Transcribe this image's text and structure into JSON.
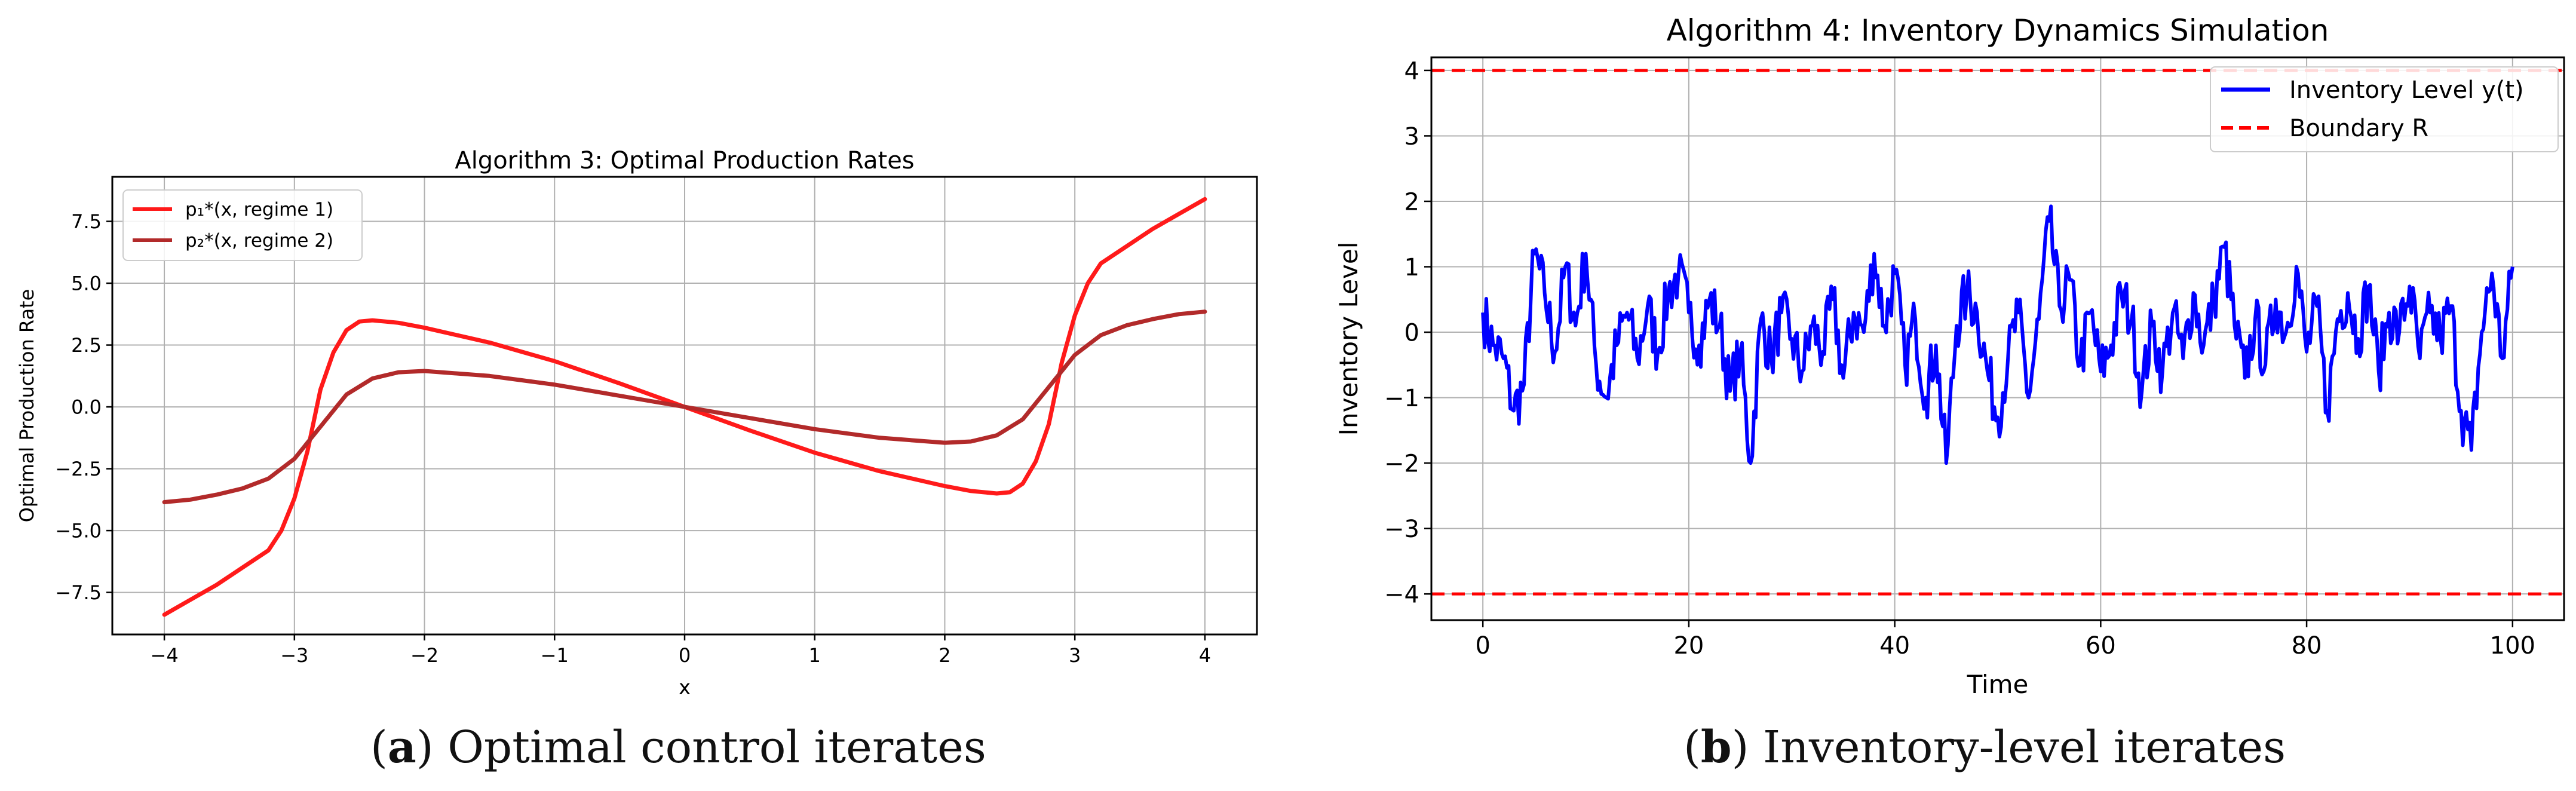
{
  "colors": {
    "p1": "#ff1a1a",
    "p2": "#b22a2a",
    "inventory": "#0000ff",
    "boundary": "#ff0000",
    "grid": "#b0b0b0",
    "axis": "#000000"
  },
  "captions": {
    "a": {
      "letter": "a",
      "text": " Optimal control iterates"
    },
    "b": {
      "letter": "b",
      "text": " Inventory-level iterates"
    }
  },
  "chart_data": [
    {
      "type": "line",
      "title": "Algorithm 3: Optimal Production Rates",
      "xlabel": "x",
      "ylabel": "Optimal Production Rate",
      "xlim": [
        -4.4,
        4.4
      ],
      "ylim": [
        -9.2,
        9.3
      ],
      "xticks": [
        -4,
        -3,
        -2,
        -1,
        0,
        1,
        2,
        3,
        4
      ],
      "yticks": [
        -7.5,
        -5.0,
        -2.5,
        0.0,
        2.5,
        5.0,
        7.5
      ],
      "xtick_labels": [
        "−4",
        "−3",
        "−2",
        "−1",
        "0",
        "1",
        "2",
        "3",
        "4"
      ],
      "ytick_labels": [
        "−7.5",
        "−5.0",
        "−2.5",
        "0.0",
        "2.5",
        "5.0",
        "7.5"
      ],
      "grid": true,
      "legend_position": "top-left",
      "series": [
        {
          "name": "p₁*(x, regime 1)",
          "color": "#ff1a1a",
          "x": [
            -4.0,
            -3.8,
            -3.6,
            -3.4,
            -3.2,
            -3.1,
            -3.0,
            -2.9,
            -2.8,
            -2.7,
            -2.6,
            -2.5,
            -2.4,
            -2.3,
            -2.2,
            -2.0,
            -1.5,
            -1.0,
            -0.5,
            0.0,
            0.5,
            1.0,
            1.5,
            2.0,
            2.2,
            2.3,
            2.4,
            2.5,
            2.6,
            2.7,
            2.8,
            2.9,
            3.0,
            3.1,
            3.2,
            3.4,
            3.6,
            3.8,
            4.0
          ],
          "y": [
            -8.4,
            -7.8,
            -7.2,
            -6.5,
            -5.8,
            -5.0,
            -3.7,
            -1.8,
            0.7,
            2.2,
            3.1,
            3.45,
            3.5,
            3.45,
            3.4,
            3.2,
            2.6,
            1.85,
            0.95,
            0.0,
            -0.95,
            -1.85,
            -2.6,
            -3.2,
            -3.4,
            -3.45,
            -3.5,
            -3.45,
            -3.1,
            -2.2,
            -0.7,
            1.8,
            3.7,
            5.0,
            5.8,
            6.5,
            7.2,
            7.8,
            8.4
          ]
        },
        {
          "name": "p₂*(x, regime 2)",
          "color": "#b22a2a",
          "x": [
            -4.0,
            -3.8,
            -3.6,
            -3.4,
            -3.2,
            -3.0,
            -2.8,
            -2.6,
            -2.4,
            -2.2,
            -2.0,
            -1.5,
            -1.0,
            -0.5,
            0.0,
            0.5,
            1.0,
            1.5,
            2.0,
            2.2,
            2.4,
            2.6,
            2.8,
            3.0,
            3.2,
            3.4,
            3.6,
            3.8,
            4.0
          ],
          "y": [
            -3.85,
            -3.75,
            -3.55,
            -3.3,
            -2.9,
            -2.1,
            -0.8,
            0.5,
            1.15,
            1.4,
            1.45,
            1.25,
            0.9,
            0.45,
            0.0,
            -0.45,
            -0.9,
            -1.25,
            -1.45,
            -1.4,
            -1.15,
            -0.5,
            0.8,
            2.1,
            2.9,
            3.3,
            3.55,
            3.75,
            3.85
          ]
        }
      ]
    },
    {
      "type": "line",
      "title": "Algorithm 4: Inventory Dynamics Simulation",
      "xlabel": "Time",
      "ylabel": "Inventory Level",
      "xlim": [
        -5,
        105
      ],
      "ylim": [
        -4.4,
        4.2
      ],
      "xticks": [
        0,
        20,
        40,
        60,
        80,
        100
      ],
      "yticks": [
        -4,
        -3,
        -2,
        -1,
        0,
        1,
        2,
        3,
        4
      ],
      "xtick_labels": [
        "0",
        "20",
        "40",
        "60",
        "80",
        "100"
      ],
      "ytick_labels": [
        "−4",
        "−3",
        "−2",
        "−1",
        "0",
        "1",
        "2",
        "3",
        "4"
      ],
      "grid": true,
      "legend_position": "top-right",
      "series": [
        {
          "name": "Inventory Level y(t)",
          "color": "#0000ff",
          "style": "solid",
          "x": [
            0,
            1,
            2,
            3,
            4,
            5,
            6,
            7,
            8,
            9,
            10,
            11,
            12,
            13,
            14,
            15,
            16,
            17,
            18,
            19,
            20,
            21,
            22,
            23,
            24,
            25,
            26,
            27,
            28,
            29,
            30,
            31,
            32,
            33,
            34,
            35,
            36,
            37,
            38,
            39,
            40,
            41,
            42,
            43,
            44,
            45,
            46,
            47,
            48,
            49,
            50,
            51,
            52,
            53,
            54,
            55,
            56,
            57,
            58,
            59,
            60,
            61,
            62,
            63,
            64,
            65,
            66,
            67,
            68,
            69,
            70,
            71,
            72,
            73,
            74,
            75,
            76,
            77,
            78,
            79,
            80,
            81,
            82,
            83,
            84,
            85,
            86,
            87,
            88,
            89,
            90,
            91,
            92,
            93,
            94,
            95,
            96,
            97,
            98,
            99,
            100
          ],
          "y": [
            0.3,
            -0.2,
            -0.4,
            -1.2,
            -0.8,
            1.2,
            0.6,
            -0.3,
            1.0,
            0.1,
            1.2,
            -0.5,
            -1.0,
            -0.2,
            0.3,
            -0.4,
            0.4,
            -0.3,
            0.6,
            0.9,
            0.3,
            -0.2,
            0.5,
            0.1,
            -0.9,
            -0.3,
            -2.0,
            0.2,
            -0.4,
            0.3,
            -0.1,
            -0.6,
            0.1,
            -0.3,
            0.5,
            -0.7,
            0.3,
            0.0,
            1.2,
            0.1,
            0.9,
            -0.5,
            0.2,
            -1.0,
            -0.2,
            -2.0,
            0.1,
            0.6,
            0.3,
            -0.6,
            -1.3,
            -0.4,
            0.3,
            -1.0,
            0.2,
            1.7,
            0.4,
            0.8,
            -0.5,
            0.3,
            -0.6,
            -0.2,
            0.6,
            0.2,
            -0.9,
            0.1,
            -0.6,
            0.3,
            -0.4,
            0.6,
            -0.2,
            0.5,
            1.3,
            0.1,
            -0.7,
            0.2,
            -0.5,
            0.5,
            0.0,
            1.0,
            -0.3,
            0.4,
            -1.2,
            0.2,
            0.6,
            -0.1,
            0.7,
            -0.6,
            0.3,
            0.0,
            0.7,
            -0.4,
            0.3,
            -0.1,
            0.4,
            -1.2,
            -1.8,
            0.0,
            0.9,
            -0.4,
            1.0
          ]
        },
        {
          "name": "Boundary R",
          "color": "#ff0000",
          "style": "dashed",
          "hlines": [
            4,
            -4
          ]
        }
      ]
    }
  ]
}
